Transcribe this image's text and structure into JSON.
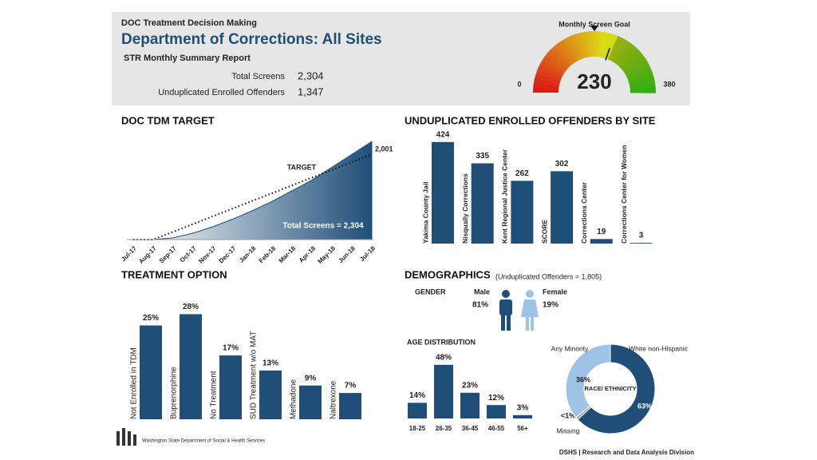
{
  "header": {
    "kicker": "DOC Treatment Decision Making",
    "title": "Department of Corrections: All Sites",
    "report": "STR  Monthly Summary Report",
    "stats": [
      {
        "label": "Total Screens",
        "value": "2,304"
      },
      {
        "label": "Unduplicated Enrolled Offenders",
        "value": "1,347"
      }
    ]
  },
  "chart_data": [
    {
      "type": "gauge",
      "title": "Monthly Screen Goal",
      "value": 230,
      "ylim": [
        0,
        380
      ],
      "yticks": [
        0,
        380
      ]
    },
    {
      "type": "area",
      "title": "DOC TDM TARGET",
      "categories": [
        "Jul-17",
        "Aug-17",
        "Sep-17",
        "Oct-17",
        "Nov-17",
        "Dec-17",
        "Jan-18",
        "Feb-18",
        "Mar-18",
        "Apr-18",
        "May-18",
        "Jun-18",
        "Jul-18"
      ],
      "series": [
        {
          "name": "TARGET",
          "color": "#111111",
          "values": [
            0,
            0,
            182,
            364,
            546,
            728,
            910,
            1092,
            1274,
            1456,
            1638,
            1819,
            2001
          ]
        },
        {
          "name": "Total Screens = 2,304",
          "color": "#1f4e79",
          "values": [
            0,
            0,
            40,
            150,
            300,
            480,
            680,
            900,
            1150,
            1400,
            1700,
            2000,
            2304
          ]
        }
      ],
      "annotation": "2,001",
      "ylim": [
        0,
        2400
      ]
    },
    {
      "type": "bar",
      "title": "UNDUPLICATED ENROLLED OFFENDERS BY SITE",
      "categories": [
        "Yakima County Jail",
        "Nisqually Corrections",
        "Kent Regional Justice Center",
        "SCORE",
        "Corrections Center",
        "Corrections Center for Women"
      ],
      "values": [
        424,
        335,
        262,
        302,
        19,
        3
      ],
      "color": "#1f4e79",
      "ylim": [
        0,
        450
      ]
    },
    {
      "type": "bar",
      "title": "TREATMENT OPTION",
      "categories": [
        "Not Enrolled in TDM",
        "Buprenorphine",
        "No Treatment",
        "SUD Treatment w/o MAT",
        "Methadone",
        "Naltrexone"
      ],
      "values": [
        25,
        28,
        17,
        13,
        9,
        7
      ],
      "value_labels": [
        "25%",
        "28%",
        "17%",
        "13%",
        "9%",
        "7%"
      ],
      "color": "#1f4e79",
      "ylim": [
        0,
        30
      ]
    },
    {
      "type": "bar",
      "title": "AGE DISTRIBUTION",
      "categories": [
        "18-25",
        "26-35",
        "36-45",
        "46-55",
        "56+"
      ],
      "values": [
        14,
        48,
        23,
        12,
        3
      ],
      "value_labels": [
        "14%",
        "48%",
        "23%",
        "12%",
        "3%"
      ],
      "color": "#1f4e79",
      "ylim": [
        0,
        50
      ]
    },
    {
      "type": "pie",
      "title": "RACE/ ETHNICITY",
      "categories": [
        "White non-Hispanic",
        "Missing",
        "Any Minority"
      ],
      "values": [
        63,
        1,
        36
      ],
      "value_labels": [
        "63%",
        "<1%",
        "36%"
      ],
      "colors": [
        "#1f4e79",
        "#a6a6a6",
        "#9dc3e6"
      ]
    }
  ],
  "demographics": {
    "title": "DEMOGRAPHICS",
    "note": "(Unduplicated Offenders = 1,805)"
  },
  "gender": {
    "title": "GENDER",
    "items": [
      {
        "label": "Male",
        "value": "81%"
      },
      {
        "label": "Female",
        "value": "19%"
      }
    ]
  },
  "footer": {
    "logo": "Washington State Department of Social & Health Services",
    "credit": "DSHS | Research and Data Analysis Division"
  }
}
